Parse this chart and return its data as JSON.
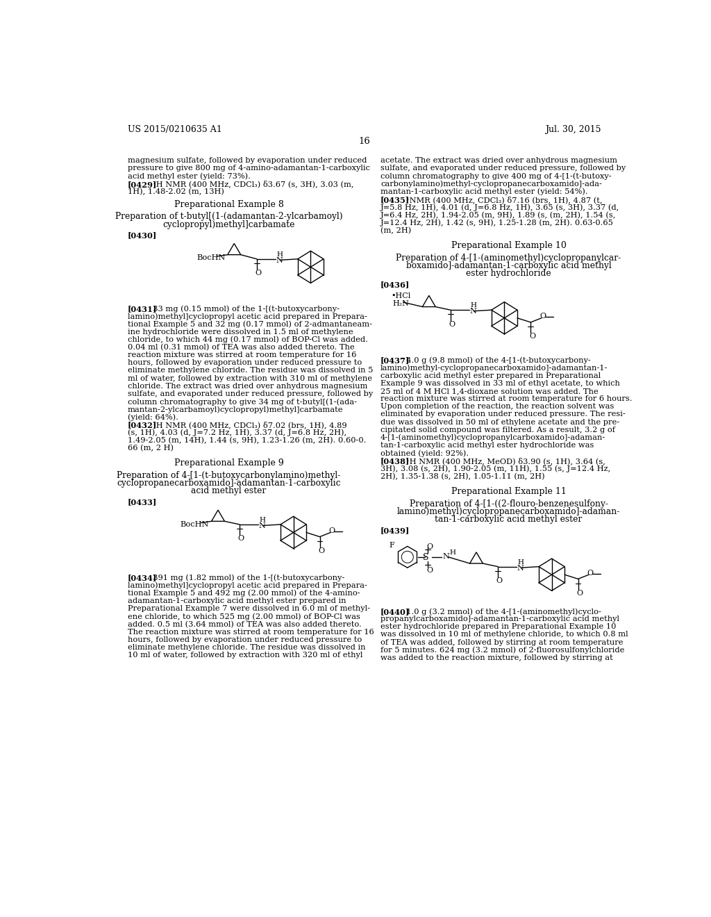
{
  "bg": "#ffffff",
  "header_left": "US 2015/0210635 A1",
  "header_right": "Jul. 30, 2015",
  "page_num": "16"
}
